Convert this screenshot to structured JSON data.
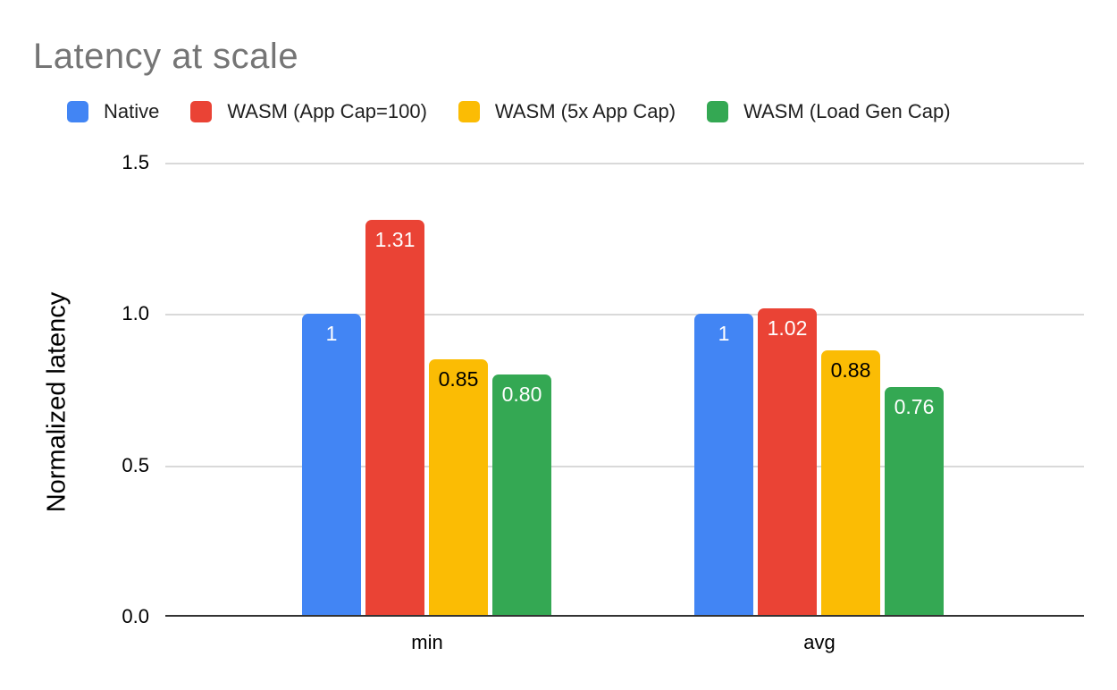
{
  "title": "Latency at scale",
  "legend": [
    {
      "label": "Native",
      "color": "#4285F4"
    },
    {
      "label": "WASM (App Cap=100)",
      "color": "#EA4335"
    },
    {
      "label": "WASM (5x App Cap)",
      "color": "#FBBC04"
    },
    {
      "label": "WASM (Load Gen Cap)",
      "color": "#34A853"
    }
  ],
  "chart_data": {
    "type": "bar",
    "title": "Latency at scale",
    "xlabel": "",
    "ylabel": "Normalized latency",
    "categories": [
      "min",
      "avg"
    ],
    "series": [
      {
        "name": "Native",
        "color": "#4285F4",
        "values": [
          1.0,
          1.0
        ],
        "labels": [
          "1",
          "1"
        ],
        "label_color": "#ffffff"
      },
      {
        "name": "WASM (App Cap=100)",
        "color": "#EA4335",
        "values": [
          1.31,
          1.02
        ],
        "labels": [
          "1.31",
          "1.02"
        ],
        "label_color": "#ffffff"
      },
      {
        "name": "WASM (5x App Cap)",
        "color": "#FBBC04",
        "values": [
          0.85,
          0.88
        ],
        "labels": [
          "0.85",
          "0.88"
        ],
        "label_color": "#000000"
      },
      {
        "name": "WASM (Load Gen Cap)",
        "color": "#34A853",
        "values": [
          0.8,
          0.76
        ],
        "labels": [
          "0.80",
          "0.76"
        ],
        "label_color": "#ffffff"
      }
    ],
    "ylim": [
      0,
      1.5
    ],
    "yticks": [
      "0.0",
      "0.5",
      "1.0",
      "1.5"
    ],
    "grid": true,
    "legend_position": "top",
    "title_color": "#757575"
  }
}
